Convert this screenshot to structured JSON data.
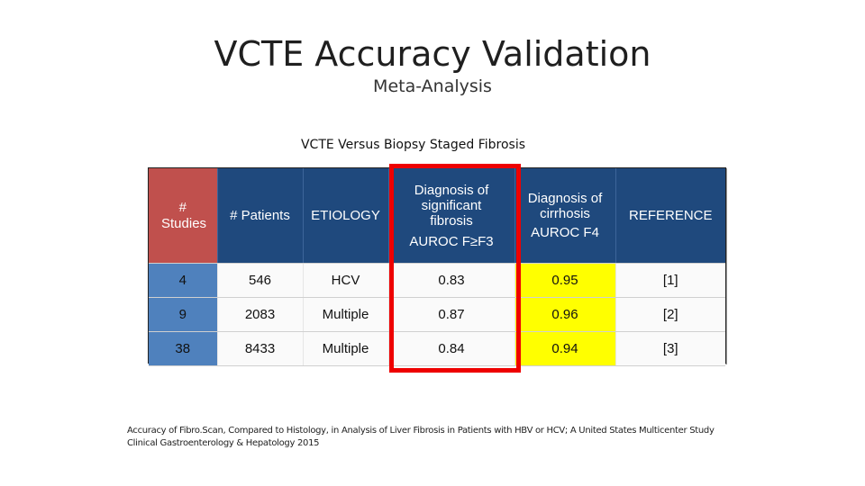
{
  "slide": {
    "title": "VCTE Accuracy Validation",
    "subtitle": "Meta-Analysis",
    "table_caption": "VCTE Versus Biopsy Staged Fibrosis"
  },
  "table": {
    "headers": {
      "studies": "# Studies",
      "patients": "# Patients",
      "etiology": "ETIOLOGY",
      "sig_fibrosis_line1": "Diagnosis of significant fibrosis",
      "sig_fibrosis_line2": "AUROC F≥F3",
      "cirrhosis_line1": "Diagnosis of cirrhosis",
      "cirrhosis_line2": "AUROC F4",
      "reference": "REFERENCE"
    },
    "rows": [
      {
        "studies": "4",
        "patients": "546",
        "etiology": "HCV",
        "sig_fibrosis": "0.83",
        "cirrhosis": "0.95",
        "reference": "[1]"
      },
      {
        "studies": "9",
        "patients": "2083",
        "etiology": "Multiple",
        "sig_fibrosis": "0.87",
        "cirrhosis": "0.96",
        "reference": "[2]"
      },
      {
        "studies": "38",
        "patients": "8433",
        "etiology": "Multiple",
        "sig_fibrosis": "0.84",
        "cirrhosis": "0.94",
        "reference": "[3]"
      }
    ]
  },
  "citation": {
    "line1": "Accuracy of Fibro.Scan, Compared to Histology, in Analysis of Liver Fibrosis in Patients with HBV or HCV; A United States Multicenter Study",
    "line2": "Clinical Gastroenterology & Hepatology 2015"
  },
  "colors": {
    "header_blue": "#1f497d",
    "header_red": "#c0504d",
    "first_col_blue": "#4f81bd",
    "highlight_yellow": "#ffff00",
    "highlight_box_red": "#ee0000"
  }
}
